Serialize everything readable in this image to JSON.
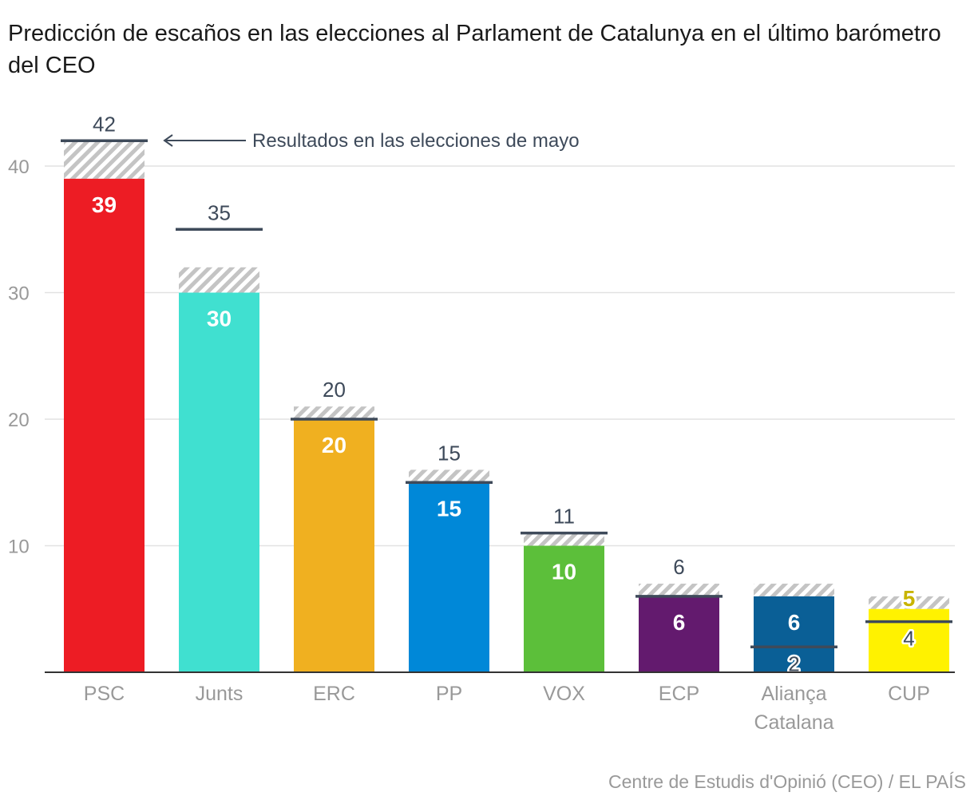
{
  "chart_data": {
    "type": "bar",
    "title": "Predicción de escaños en las elecciones al Parlament de Catalunya en el último barómetro del CEO",
    "annotation": "Resultados en las elecciones de mayo",
    "source": "Centre de Estudis d'Opinió (CEO) / EL PAÍS",
    "ylim": [
      0,
      42
    ],
    "yticks": [
      10,
      20,
      30,
      40
    ],
    "grid": true,
    "categories": [
      "PSC",
      "Junts",
      "ERC",
      "PP",
      "VOX",
      "ECP",
      "Aliança Catalana",
      "CUP"
    ],
    "category_lines": [
      [
        "PSC"
      ],
      [
        "Junts"
      ],
      [
        "ERC"
      ],
      [
        "PP"
      ],
      [
        "VOX"
      ],
      [
        "ECP"
      ],
      [
        "Aliança",
        "Catalana"
      ],
      [
        "CUP"
      ]
    ],
    "predicted": [
      39,
      30,
      20,
      15,
      10,
      6,
      6,
      5
    ],
    "range_max": [
      42,
      32,
      21,
      16,
      11,
      7,
      7,
      6
    ],
    "last_election": [
      42,
      35,
      20,
      15,
      11,
      6,
      2,
      4
    ],
    "colors": [
      "#ed1c24",
      "#40e0d0",
      "#f0b020",
      "#0088d8",
      "#5cbf3a",
      "#631a6e",
      "#0a5f96",
      "#fff200"
    ],
    "label_outline_colors": [
      "#ed1c24",
      "#40e0d0",
      "#f0b020",
      "#0088d8",
      "#5cbf3a",
      "#631a6e",
      "#0a5f96",
      "#c8b400"
    ]
  }
}
